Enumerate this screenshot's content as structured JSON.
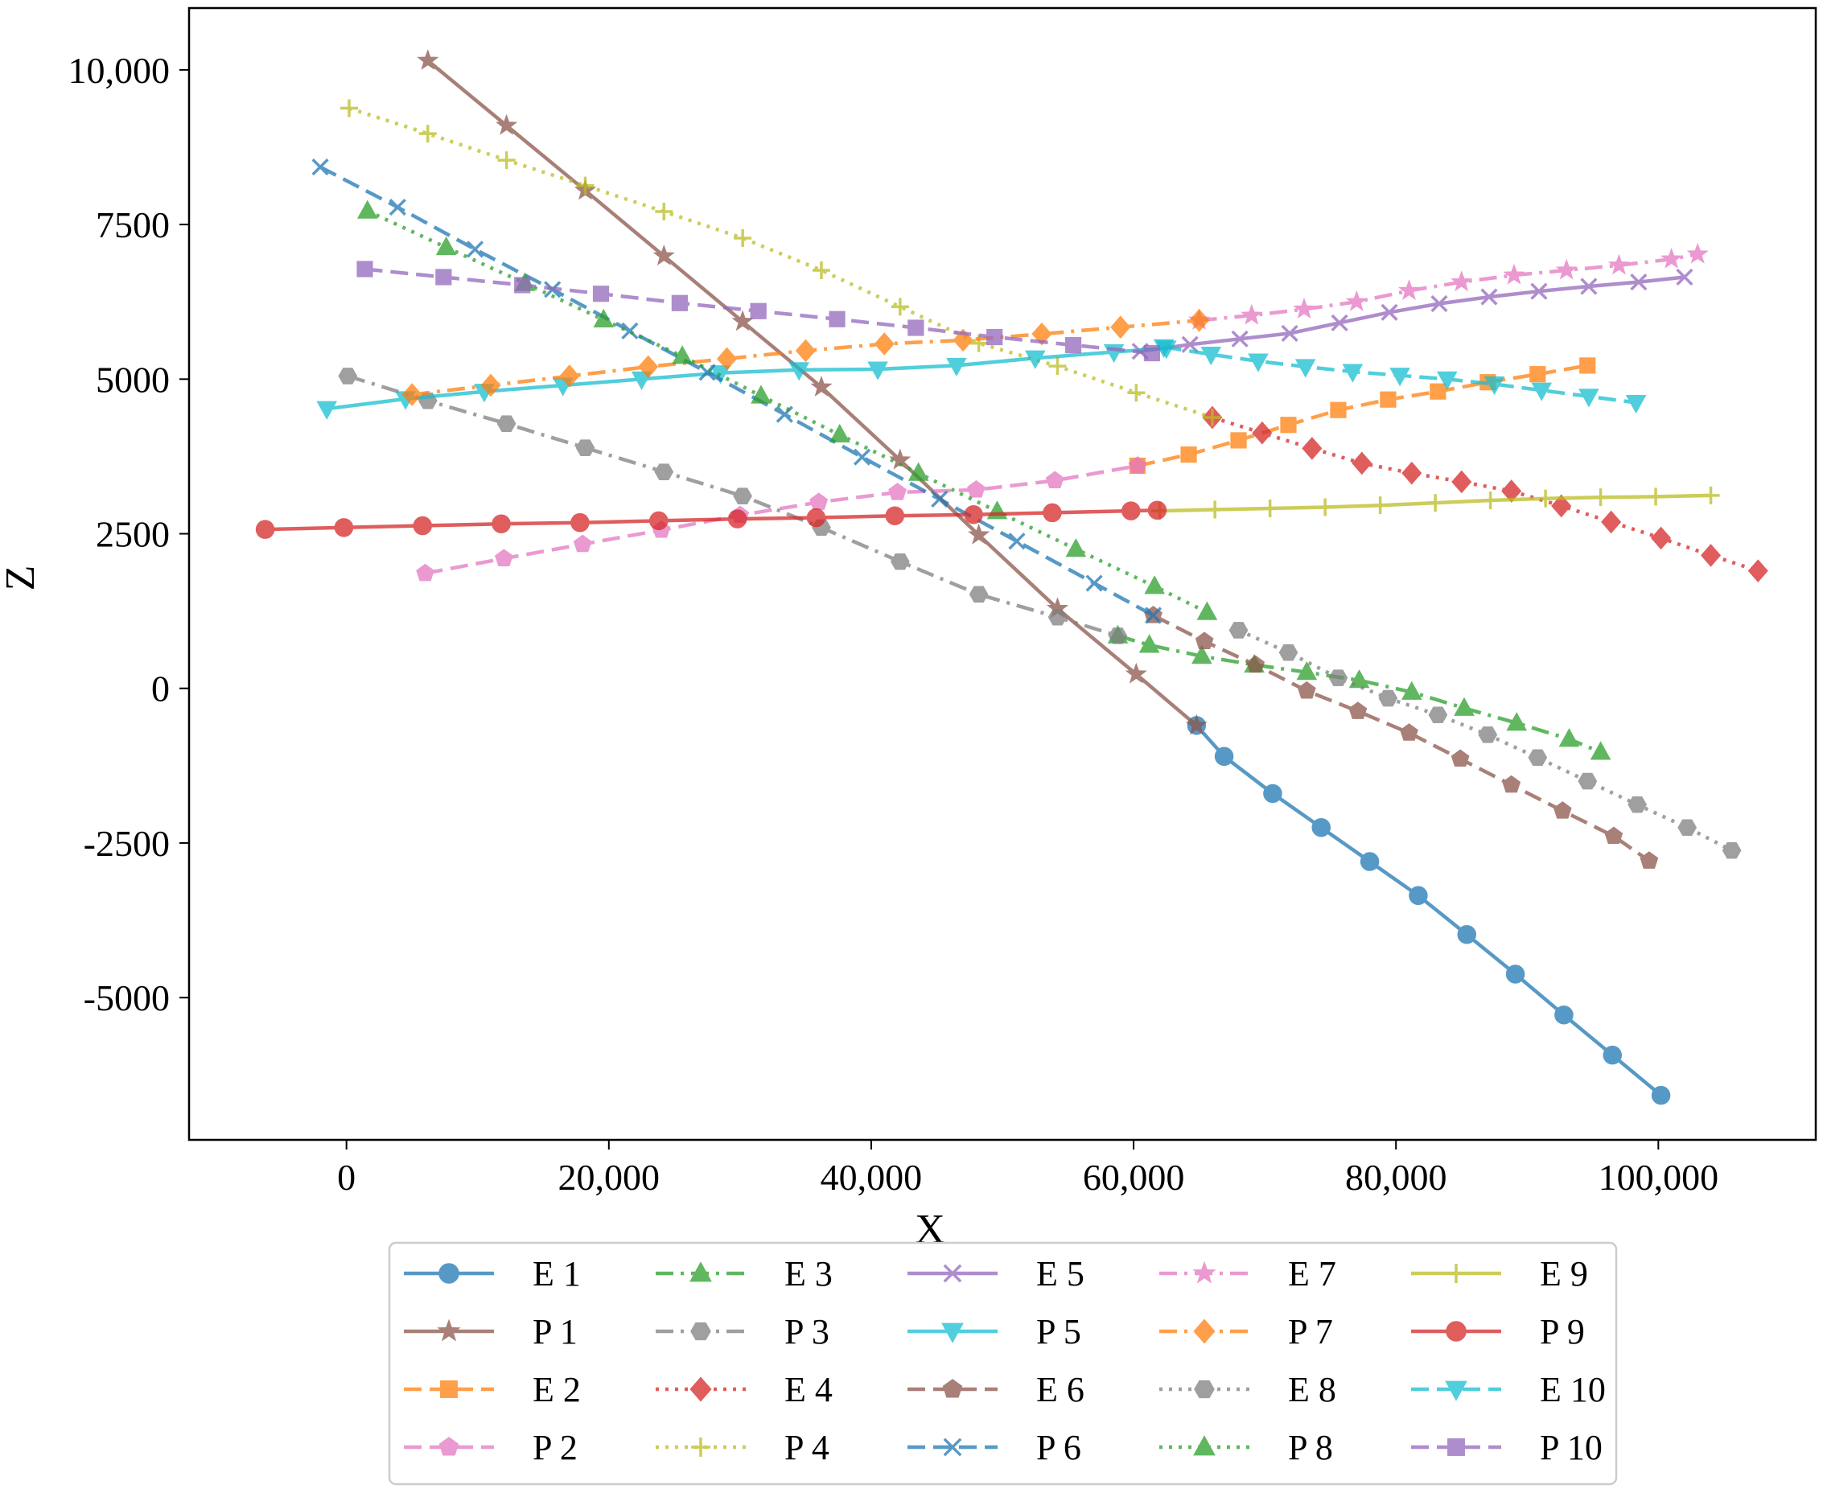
{
  "chart_data": {
    "type": "line",
    "title": "",
    "xlabel": "X",
    "ylabel": "Z",
    "xlim": [
      -12000,
      112000
    ],
    "ylim": [
      -7300,
      11000
    ],
    "xticks": [
      {
        "value": 0,
        "label": "0"
      },
      {
        "value": 20000,
        "label": "20,000"
      },
      {
        "value": 40000,
        "label": "40,000"
      },
      {
        "value": 60000,
        "label": "60,000"
      },
      {
        "value": 80000,
        "label": "80,000"
      },
      {
        "value": 100000,
        "label": "100,000"
      }
    ],
    "yticks": [
      {
        "value": 10000,
        "label": "10,000"
      },
      {
        "value": 7500,
        "label": "7500"
      },
      {
        "value": 5000,
        "label": "5000"
      },
      {
        "value": 2500,
        "label": "2500"
      },
      {
        "value": 0,
        "label": "0"
      },
      {
        "value": -2500,
        "label": "-2500"
      },
      {
        "value": -5000,
        "label": "-5000"
      }
    ],
    "grid": false,
    "legend_position": "bottom-center",
    "legend_columns": 5,
    "series": [
      {
        "name": "E 1",
        "color": "#1f77b4",
        "marker": "circle",
        "dash": "solid",
        "x": [
          64800,
          66900,
          70600,
          74300,
          78000,
          81700,
          85400,
          89100,
          92800,
          96500,
          100200
        ],
        "y": [
          -600,
          -1100,
          -1700,
          -2250,
          -2800,
          -3350,
          -3980,
          -4620,
          -5280,
          -5930,
          -6580
        ]
      },
      {
        "name": "P 1",
        "color": "#8c564b",
        "marker": "star",
        "dash": "solid",
        "x": [
          6200,
          12200,
          18200,
          24200,
          30200,
          36200,
          42200,
          48200,
          54200,
          60200,
          64800
        ],
        "y": [
          10150,
          9100,
          8050,
          6990,
          5930,
          4870,
          3690,
          2480,
          1290,
          230,
          -600
        ]
      },
      {
        "name": "E 2",
        "color": "#ff7f0e",
        "marker": "square",
        "dash": "dashed",
        "x": [
          60300,
          64200,
          68000,
          71800,
          75600,
          79400,
          83200,
          87000,
          90800,
          94600
        ],
        "y": [
          3600,
          3780,
          4010,
          4260,
          4500,
          4670,
          4800,
          4950,
          5080,
          5220
        ]
      },
      {
        "name": "P 2",
        "color": "#e377c2",
        "marker": "pentagon",
        "dash": "dashed",
        "x": [
          6000,
          12000,
          18000,
          24000,
          30000,
          36000,
          42000,
          48000,
          54000,
          60300
        ],
        "y": [
          1860,
          2100,
          2330,
          2560,
          2800,
          3010,
          3170,
          3210,
          3360,
          3600
        ]
      },
      {
        "name": "E 3",
        "color": "#2ca02c",
        "marker": "triangle-up",
        "dash": "dashdot",
        "x": [
          58800,
          61200,
          65200,
          69200,
          73200,
          77200,
          81200,
          85200,
          89200,
          93200,
          95600
        ],
        "y": [
          850,
          700,
          520,
          380,
          260,
          130,
          -60,
          -320,
          -560,
          -820,
          -1030
        ]
      },
      {
        "name": "P 3",
        "color": "#7f7f7f",
        "marker": "hexagon",
        "dash": "dashdot",
        "x": [
          100,
          6200,
          12200,
          18200,
          24200,
          30200,
          36200,
          42200,
          48200,
          54200,
          58800
        ],
        "y": [
          5050,
          4650,
          4280,
          3890,
          3500,
          3110,
          2600,
          2050,
          1520,
          1150,
          850
        ]
      },
      {
        "name": "E 4",
        "color": "#d62728",
        "marker": "diamond",
        "dash": "dotted",
        "x": [
          66000,
          69800,
          73600,
          77400,
          81200,
          85000,
          88800,
          92600,
          96400,
          100200,
          104000,
          107600
        ],
        "y": [
          4380,
          4130,
          3880,
          3640,
          3480,
          3340,
          3190,
          2950,
          2690,
          2430,
          2150,
          1900
        ]
      },
      {
        "name": "P 4",
        "color": "#bcbd22",
        "marker": "plus",
        "dash": "dotted",
        "x": [
          200,
          6200,
          12200,
          18200,
          24200,
          30200,
          36200,
          42200,
          48200,
          54200,
          60200,
          66000
        ],
        "y": [
          9380,
          8970,
          8540,
          8130,
          7710,
          7280,
          6760,
          6170,
          5580,
          5210,
          4780,
          4380
        ]
      },
      {
        "name": "E 5",
        "color": "#9467bd",
        "marker": "x",
        "dash": "solid",
        "x": [
          60500,
          64300,
          68100,
          71900,
          75700,
          79500,
          83300,
          87100,
          90900,
          94700,
          98500,
          102000
        ],
        "y": [
          5450,
          5560,
          5650,
          5740,
          5910,
          6080,
          6220,
          6330,
          6420,
          6500,
          6570,
          6650
        ]
      },
      {
        "name": "P 5",
        "color": "#17becf",
        "marker": "triangle-down",
        "dash": "solid",
        "x": [
          -1500,
          4500,
          10500,
          16500,
          22500,
          28500,
          34500,
          40500,
          46500,
          52500,
          58500,
          62500
        ],
        "y": [
          4520,
          4680,
          4800,
          4900,
          5000,
          5100,
          5150,
          5160,
          5220,
          5340,
          5440,
          5500
        ]
      },
      {
        "name": "E 6",
        "color": "#8c564b",
        "marker": "pentagon",
        "dash": "dashed",
        "x": [
          61500,
          65400,
          69300,
          73200,
          77100,
          81000,
          84900,
          88800,
          92700,
          96600,
          99300
        ],
        "y": [
          1180,
          760,
          380,
          -40,
          -370,
          -720,
          -1140,
          -1560,
          -1980,
          -2390,
          -2790
        ]
      },
      {
        "name": "P 6",
        "color": "#1f77b4",
        "marker": "x",
        "dash": "dashed",
        "x": [
          -2000,
          3900,
          9800,
          15700,
          21600,
          27500,
          33400,
          39300,
          45200,
          51100,
          57000,
          61500
        ],
        "y": [
          8430,
          7780,
          7100,
          6450,
          5780,
          5110,
          4430,
          3740,
          3060,
          2380,
          1700,
          1180
        ]
      },
      {
        "name": "E 7",
        "color": "#e377c2",
        "marker": "star",
        "dash": "dashdot",
        "x": [
          65000,
          69000,
          73000,
          77000,
          81000,
          85000,
          89000,
          93000,
          97000,
          101000,
          103000
        ],
        "y": [
          5950,
          6030,
          6130,
          6250,
          6430,
          6570,
          6680,
          6760,
          6840,
          6940,
          7020
        ]
      },
      {
        "name": "P 7",
        "color": "#ff7f0e",
        "marker": "diamond",
        "dash": "dashdot",
        "x": [
          5000,
          11000,
          17000,
          23000,
          29000,
          35000,
          41000,
          47000,
          53000,
          59000,
          65000
        ],
        "y": [
          4750,
          4900,
          5050,
          5200,
          5330,
          5460,
          5570,
          5630,
          5730,
          5840,
          5950
        ]
      },
      {
        "name": "E 8",
        "color": "#7f7f7f",
        "marker": "hexagon",
        "dash": "dotted",
        "x": [
          68000,
          71800,
          75600,
          79400,
          83200,
          87000,
          90800,
          94600,
          98400,
          102200,
          105600
        ],
        "y": [
          940,
          580,
          170,
          -160,
          -430,
          -750,
          -1120,
          -1500,
          -1880,
          -2250,
          -2620
        ]
      },
      {
        "name": "P 8",
        "color": "#2ca02c",
        "marker": "triangle-up",
        "dash": "dotted",
        "x": [
          1600,
          7600,
          13600,
          19600,
          25600,
          31600,
          37600,
          43600,
          49600,
          55600,
          61600,
          65600
        ],
        "y": [
          7720,
          7130,
          6550,
          5960,
          5370,
          4730,
          4100,
          3480,
          2860,
          2250,
          1650,
          1230
        ]
      },
      {
        "name": "E 9",
        "color": "#bcbd22",
        "marker": "plus",
        "dash": "solid",
        "x": [
          62000,
          66200,
          70400,
          74600,
          78800,
          83000,
          87200,
          91400,
          95600,
          99800,
          104000
        ],
        "y": [
          2870,
          2890,
          2910,
          2930,
          2960,
          3000,
          3040,
          3070,
          3090,
          3100,
          3120
        ]
      },
      {
        "name": "P 9",
        "color": "#d62728",
        "marker": "circle",
        "dash": "solid",
        "x": [
          -6200,
          -200,
          5800,
          11800,
          17800,
          23800,
          29800,
          35800,
          41800,
          47800,
          53800,
          59800,
          61800
        ],
        "y": [
          2570,
          2600,
          2630,
          2660,
          2680,
          2710,
          2740,
          2760,
          2790,
          2810,
          2840,
          2870,
          2880
        ]
      },
      {
        "name": "E 10",
        "color": "#17becf",
        "marker": "triangle-down",
        "dash": "dashed",
        "x": [
          62300,
          65900,
          69500,
          73100,
          76700,
          80300,
          83900,
          87500,
          91100,
          94700,
          98300
        ],
        "y": [
          5520,
          5400,
          5290,
          5200,
          5120,
          5060,
          5000,
          4920,
          4820,
          4720,
          4620
        ]
      },
      {
        "name": "P 10",
        "color": "#9467bd",
        "marker": "square",
        "dash": "dashed",
        "x": [
          1400,
          7400,
          13400,
          19400,
          25400,
          31400,
          37400,
          43400,
          49400,
          55400,
          61400
        ],
        "y": [
          6780,
          6650,
          6520,
          6380,
          6230,
          6100,
          5970,
          5830,
          5680,
          5550,
          5420
        ]
      }
    ]
  }
}
